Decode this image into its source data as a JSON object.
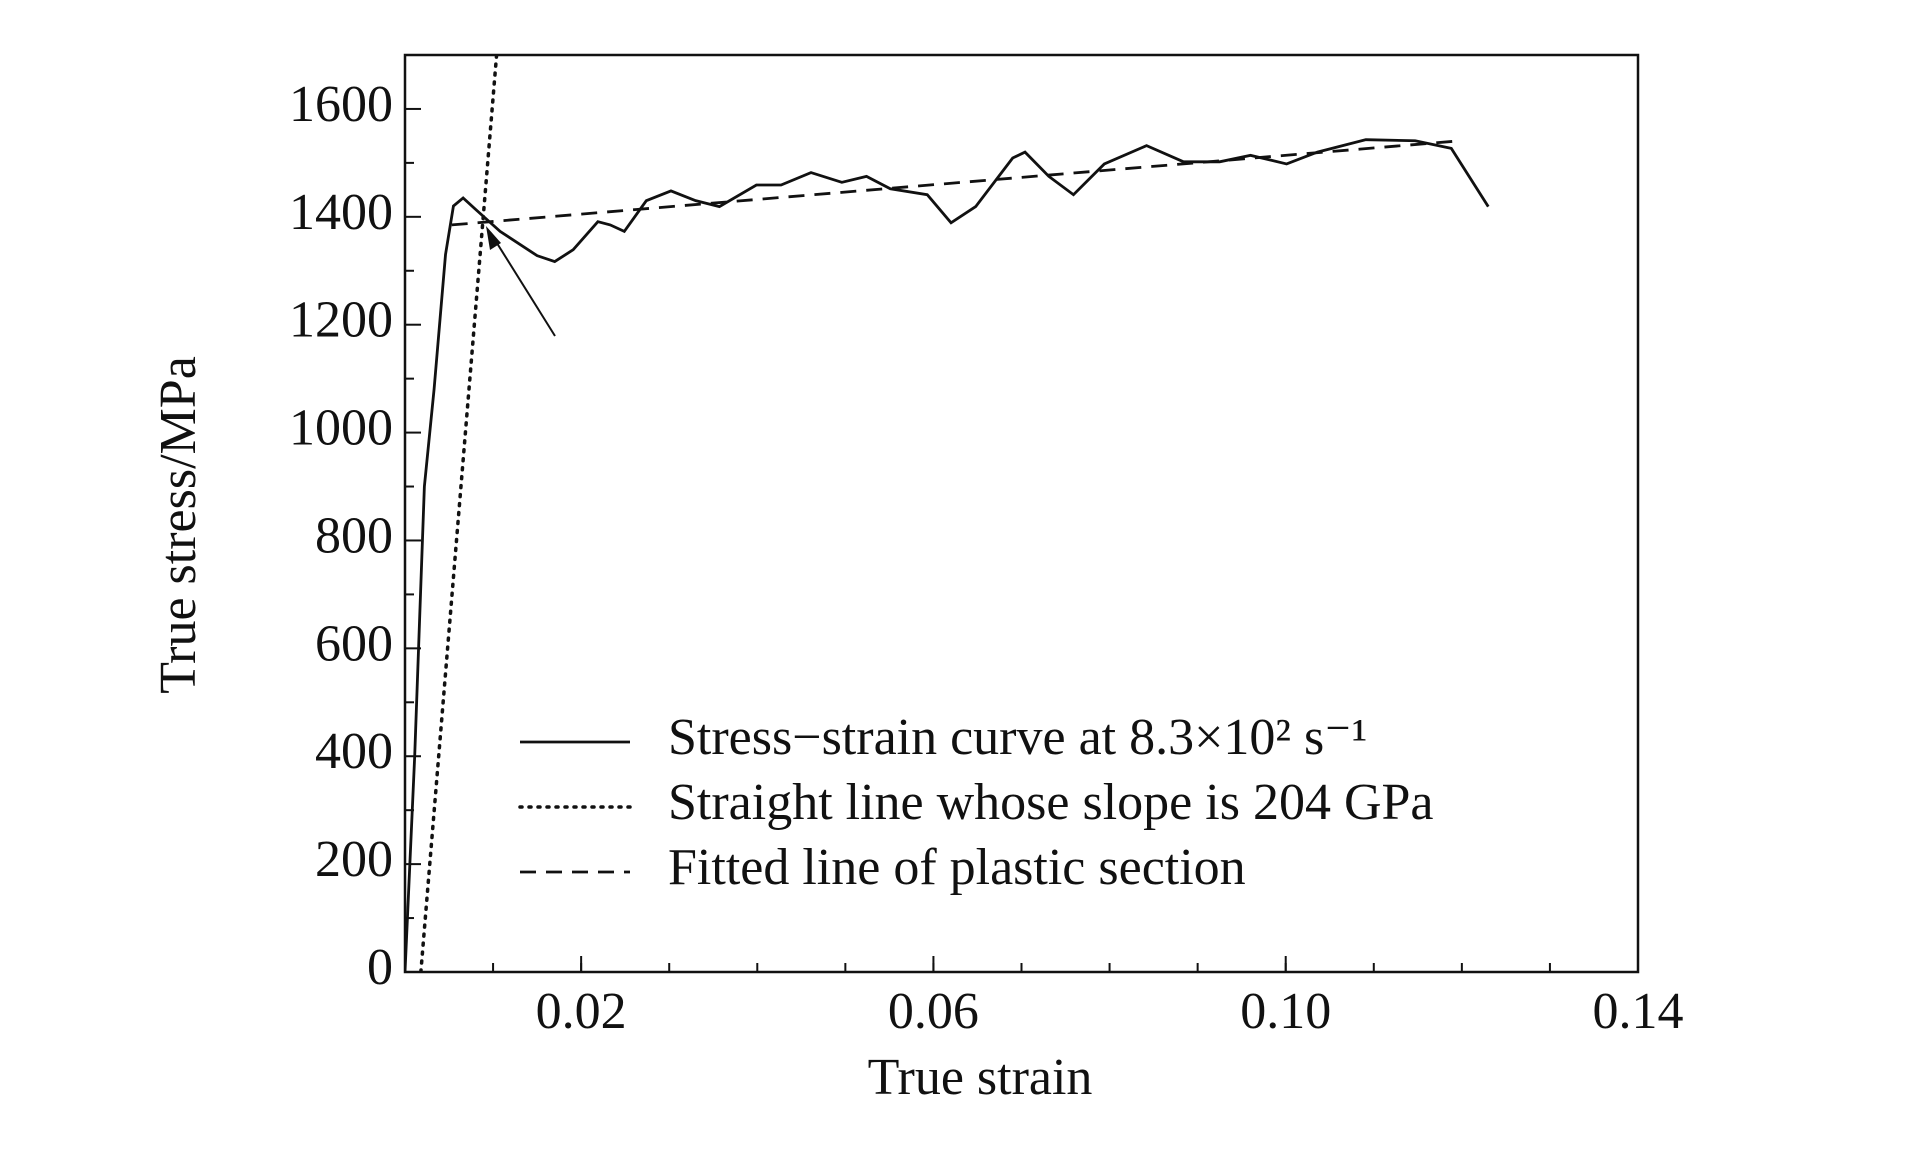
{
  "chart_data": {
    "type": "line",
    "xlabel": "True strain",
    "ylabel": "True stress/MPa",
    "xlim": [
      0,
      0.14
    ],
    "ylim": [
      0,
      1700
    ],
    "xticks": [
      0.02,
      0.06,
      {
        "value": 0.1,
        "label": "0.10"
      },
      0.14
    ],
    "xminorticks": [
      0.01,
      0.02,
      0.03,
      0.04,
      0.05,
      0.06,
      0.07,
      0.08,
      0.09,
      0.1,
      0.11,
      0.12,
      0.13
    ],
    "yticks": [
      0,
      200,
      400,
      600,
      800,
      1000,
      1200,
      1400,
      1600
    ],
    "yminorticks": [
      100,
      300,
      500,
      700,
      900,
      1100,
      1300,
      1500
    ],
    "legend": "lower right",
    "series": [
      {
        "name": "Stress−strain curve at 8.3×10² s⁻¹",
        "color": "#111111",
        "style": "solid",
        "x": [
          0,
          0.0011,
          0.0022,
          0.0033,
          0.0046,
          0.0055,
          0.0066,
          0.008,
          0.0108,
          0.015,
          0.017,
          0.0191,
          0.0219,
          0.0233,
          0.0249,
          0.0274,
          0.0302,
          0.033,
          0.0357,
          0.0399,
          0.0427,
          0.0461,
          0.0496,
          0.0524,
          0.0551,
          0.0593,
          0.062,
          0.0648,
          0.069,
          0.0704,
          0.0731,
          0.0759,
          0.0794,
          0.0842,
          0.0884,
          0.0925,
          0.096,
          0.1001,
          0.1036,
          0.1091,
          0.1147,
          0.1188,
          0.123
        ],
        "values": [
          0,
          400,
          900,
          1080,
          1330,
          1420,
          1435,
          1414,
          1373,
          1328,
          1317,
          1339,
          1391,
          1385,
          1373,
          1430,
          1448,
          1430,
          1419,
          1459,
          1459,
          1482,
          1464,
          1475,
          1452,
          1441,
          1389,
          1419,
          1509,
          1520,
          1475,
          1441,
          1498,
          1532,
          1502,
          1502,
          1514,
          1498,
          1520,
          1543,
          1541,
          1527,
          1419
        ]
      },
      {
        "name": "Straight line whose slope is 204 GPa",
        "color": "#111111",
        "style": "dotted",
        "x": [
          0.0018,
          0.0104
        ],
        "values": [
          0,
          1700
        ]
      },
      {
        "name": "Fitted line of plastic section",
        "color": "#111111",
        "style": "dashed",
        "x": [
          0.0053,
          0.1198
        ],
        "values": [
          1385,
          1541
        ]
      }
    ]
  }
}
